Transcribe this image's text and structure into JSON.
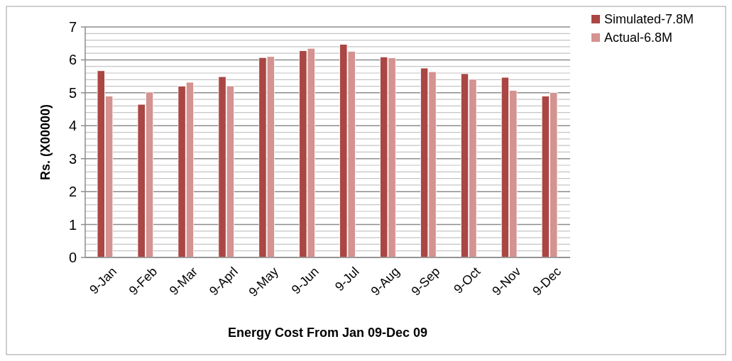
{
  "chart_data": {
    "type": "bar",
    "xlabel": "Energy Cost From Jan 09-Dec 09",
    "ylabel": "Rs. (X00000)",
    "categories": [
      "9-Jan",
      "9-Feb",
      "9-Mar",
      "9-Aprl",
      "9-May",
      "9-Jun",
      "9-Jul",
      "9-Aug",
      "9-Sep",
      "9-Oct",
      "9-Nov",
      "9-Dec"
    ],
    "series": [
      {
        "name": "Simulated-7.8M",
        "color": "#aa4643",
        "values": [
          5.67,
          4.65,
          5.2,
          5.49,
          6.07,
          6.28,
          6.47,
          6.09,
          5.75,
          5.58,
          5.47,
          4.9
        ]
      },
      {
        "name": "Actual-6.8M",
        "color": "#d49290",
        "values": [
          4.9,
          5.02,
          5.32,
          5.21,
          6.1,
          6.35,
          6.26,
          6.06,
          5.64,
          5.41,
          5.07,
          5.01
        ]
      }
    ],
    "ylim": [
      0,
      7
    ],
    "yticks": [
      0,
      {
        "value": 0.2,
        "label": null
      },
      {
        "value": 0.4,
        "label": null
      },
      {
        "value": 0.6,
        "label": null
      },
      {
        "value": 0.8,
        "label": null
      },
      1,
      {
        "value": 1.2,
        "label": null
      },
      {
        "value": 1.4,
        "label": null
      },
      {
        "value": 1.6,
        "label": null
      },
      {
        "value": 1.8,
        "label": null
      },
      2,
      {
        "value": 2.2,
        "label": null
      },
      {
        "value": 2.4,
        "label": null
      },
      {
        "value": 2.6,
        "label": null
      },
      {
        "value": 2.8,
        "label": null
      },
      3,
      {
        "value": 3.2,
        "label": null
      },
      {
        "value": 3.4,
        "label": null
      },
      {
        "value": 3.6,
        "label": null
      },
      {
        "value": 3.8,
        "label": null
      },
      4,
      {
        "value": 4.2,
        "label": null
      },
      {
        "value": 4.4,
        "label": null
      },
      {
        "value": 4.6,
        "label": null
      },
      {
        "value": 4.8,
        "label": null
      },
      5,
      {
        "value": 5.2,
        "label": null
      },
      {
        "value": 5.4,
        "label": null
      },
      {
        "value": 5.6,
        "label": null
      },
      {
        "value": 5.8,
        "label": null
      },
      6,
      {
        "value": 6.2,
        "label": null
      },
      {
        "value": 6.4,
        "label": null
      },
      {
        "value": 6.6,
        "label": null
      },
      {
        "value": 6.8,
        "label": null
      },
      7
    ],
    "grid": "y",
    "legend": "top right"
  }
}
